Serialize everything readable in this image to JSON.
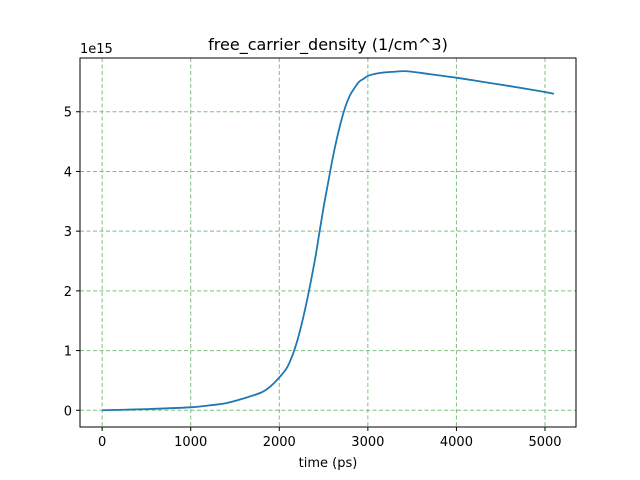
{
  "chart_data": {
    "type": "line",
    "title": "free_carrier_density (1/cm^3)",
    "xlabel": "time (ps)",
    "ylabel": "",
    "y_offset_label": "1e15",
    "xlim": [
      -250,
      5350
    ],
    "ylim": [
      -0.28,
      5.9
    ],
    "xticks": [
      0,
      1000,
      2000,
      3000,
      4000,
      5000
    ],
    "xtick_labels": [
      "0",
      "1000",
      "2000",
      "3000",
      "4000",
      "5000"
    ],
    "yticks": [
      0,
      1,
      2,
      3,
      4,
      5
    ],
    "ytick_labels": [
      "0",
      "1",
      "2",
      "3",
      "4",
      "5"
    ],
    "grid": true,
    "grid_color": "#7fbf7f",
    "series_color": "#1f77b4",
    "series": [
      {
        "x": [
          0,
          500,
          1000,
          1200,
          1400,
          1600,
          1800,
          1900,
          2000,
          2100,
          2200,
          2300,
          2400,
          2450,
          2500,
          2550,
          2600,
          2650,
          2700,
          2750,
          2800,
          2850,
          2900,
          2950,
          3000,
          3100,
          3200,
          3300,
          3400,
          3500,
          3700,
          4000,
          4300,
          4600,
          5000,
          5100
        ],
        "y": [
          0.0,
          0.02,
          0.05,
          0.08,
          0.12,
          0.2,
          0.3,
          0.4,
          0.55,
          0.75,
          1.15,
          1.75,
          2.5,
          2.95,
          3.4,
          3.8,
          4.2,
          4.55,
          4.85,
          5.1,
          5.28,
          5.4,
          5.5,
          5.55,
          5.6,
          5.64,
          5.66,
          5.67,
          5.68,
          5.67,
          5.63,
          5.57,
          5.5,
          5.43,
          5.33,
          5.3
        ]
      }
    ]
  }
}
